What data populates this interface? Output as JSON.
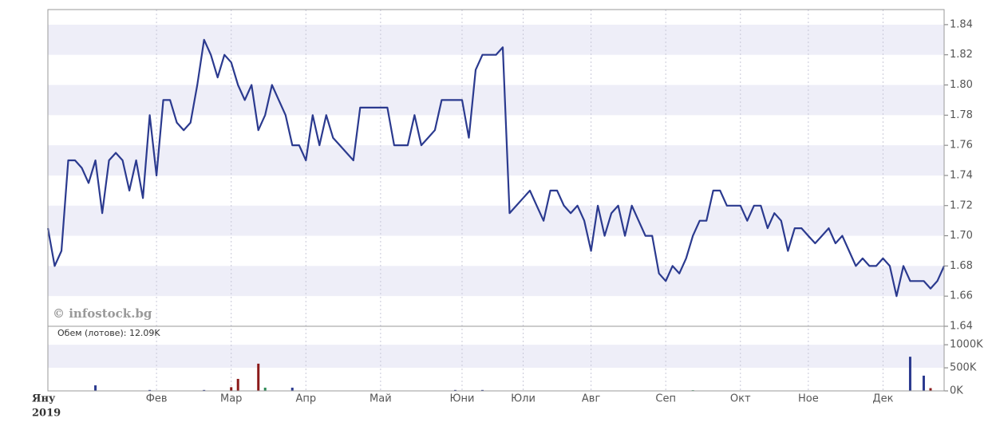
{
  "chart_data": {
    "type": "line",
    "watermark": "© infostock.bg",
    "volume_label": "Обем (лотове): 12.09K",
    "year_label": "2019",
    "color": "#2b3a8f",
    "grid": true,
    "values": [
      1.705,
      1.68,
      1.69,
      1.75,
      1.75,
      1.745,
      1.735,
      1.75,
      1.715,
      1.75,
      1.755,
      1.75,
      1.73,
      1.75,
      1.725,
      1.78,
      1.74,
      1.79,
      1.79,
      1.775,
      1.77,
      1.775,
      1.8,
      1.83,
      1.82,
      1.805,
      1.82,
      1.815,
      1.8,
      1.79,
      1.8,
      1.77,
      1.78,
      1.8,
      1.79,
      1.78,
      1.76,
      1.76,
      1.75,
      1.78,
      1.76,
      1.78,
      1.765,
      1.76,
      1.755,
      1.75,
      1.785,
      1.785,
      1.785,
      1.785,
      1.785,
      1.76,
      1.76,
      1.76,
      1.78,
      1.76,
      1.765,
      1.77,
      1.79,
      1.79,
      1.79,
      1.79,
      1.765,
      1.81,
      1.82,
      1.82,
      1.82,
      1.825,
      1.715,
      1.72,
      1.725,
      1.73,
      1.72,
      1.71,
      1.73,
      1.73,
      1.72,
      1.715,
      1.72,
      1.71,
      1.69,
      1.72,
      1.7,
      1.715,
      1.72,
      1.7,
      1.72,
      1.71,
      1.7,
      1.7,
      1.675,
      1.67,
      1.68,
      1.675,
      1.685,
      1.7,
      1.71,
      1.71,
      1.73,
      1.73,
      1.72,
      1.72,
      1.72,
      1.71,
      1.72,
      1.72,
      1.705,
      1.715,
      1.71,
      1.69,
      1.705,
      1.705,
      1.7,
      1.695,
      1.7,
      1.705,
      1.695,
      1.7,
      1.69,
      1.68,
      1.685,
      1.68,
      1.68,
      1.685,
      1.68,
      1.66,
      1.68,
      1.67,
      1.67,
      1.67,
      1.665,
      1.67,
      1.68
    ],
    "xlim": [
      0,
      132
    ],
    "xticks": [
      {
        "value": 0,
        "label": "Яну"
      },
      {
        "value": 16,
        "label": "Фев"
      },
      {
        "value": 27,
        "label": "Мар"
      },
      {
        "value": 38,
        "label": "Апр"
      },
      {
        "value": 49,
        "label": "Май"
      },
      {
        "value": 61,
        "label": "Юни"
      },
      {
        "value": 70,
        "label": "Юли"
      },
      {
        "value": 80,
        "label": "Авг"
      },
      {
        "value": 91,
        "label": "Сеп"
      },
      {
        "value": 102,
        "label": "Окт"
      },
      {
        "value": 112,
        "label": "Ное"
      },
      {
        "value": 123,
        "label": "Дек"
      }
    ],
    "ylim": [
      1.64,
      1.85
    ],
    "yticks": [
      1.64,
      1.66,
      1.68,
      {
        "value": 1.7,
        "label": "1.70"
      },
      1.72,
      1.74,
      1.76,
      1.78,
      {
        "value": 1.8,
        "label": "1.80"
      },
      1.82,
      1.84
    ],
    "volume": {
      "x": [
        7,
        15,
        23,
        27,
        28,
        31,
        32,
        36,
        60,
        64,
        95,
        127,
        129,
        130
      ],
      "values": [
        120000,
        20000,
        20000,
        80000,
        260000,
        590000,
        70000,
        70000,
        20000,
        20000,
        15000,
        740000,
        330000,
        60000
      ],
      "colors": [
        "#2b3a8f",
        "#2b3a8f",
        "#2b3a8f",
        "#8b1a1a",
        "#8b1a1a",
        "#8b1a1a",
        "#2e8b57",
        "#2b3a8f",
        "#2b3a8f",
        "#2b3a8f",
        "#2e8b57",
        "#2b3a8f",
        "#2b3a8f",
        "#8b1a1a"
      ],
      "ylim": [
        0,
        1400000
      ],
      "yticks": [
        {
          "value": 0,
          "label": "0K"
        },
        {
          "value": 500000,
          "label": "500K"
        },
        {
          "value": 1000000,
          "label": "1000K"
        }
      ]
    }
  }
}
